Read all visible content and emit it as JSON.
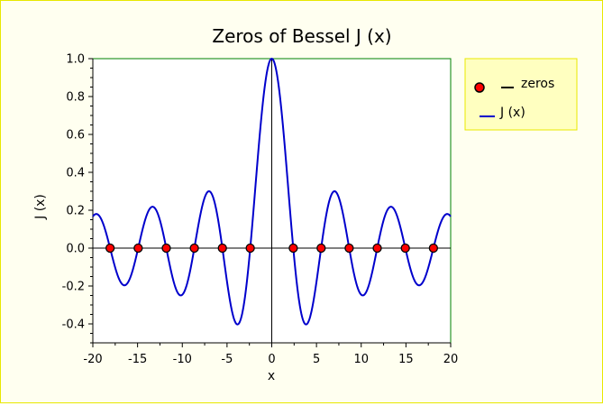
{
  "chart_data": {
    "type": "line",
    "title": "Zeros of Bessel J   (x)",
    "xlabel": "x",
    "ylabel": "J  (x)",
    "xlim": [
      -20,
      20
    ],
    "ylim": [
      -0.5,
      1.0
    ],
    "x_ticks": [
      -20,
      -15,
      -10,
      -5,
      0,
      5,
      10,
      15,
      20
    ],
    "x_tick_labels": [
      "-20",
      "-15",
      "-10",
      "-5",
      "0",
      "5",
      "10",
      "15",
      "20"
    ],
    "y_ticks": [
      -0.4,
      -0.2,
      0.0,
      0.2,
      0.4,
      0.6,
      0.8,
      1.0
    ],
    "y_tick_labels": [
      "-0.4",
      "-0.2",
      "0.0",
      "0.2",
      "0.4",
      "0.6",
      "0.8",
      "1.0"
    ],
    "grid": false,
    "legend_position": "right",
    "series": [
      {
        "name": "J   (x)",
        "kind": "line",
        "color": "#0000cc",
        "function": "bessel_j0"
      },
      {
        "name": "zeros",
        "kind": "scatter",
        "marker_fill": "#ff0000",
        "x": [
          -18.0711,
          -14.9309,
          -11.7915,
          -8.6537,
          -5.5201,
          -2.4048,
          2.4048,
          5.5201,
          8.6537,
          11.7915,
          14.9309,
          18.0711
        ],
        "y": [
          0,
          0,
          0,
          0,
          0,
          0,
          0,
          0,
          0,
          0,
          0,
          0
        ]
      }
    ],
    "legend": [
      {
        "label": "zeros"
      },
      {
        "label": "J   (x)"
      }
    ],
    "colors": {
      "background": "#fffff0",
      "plot_border": "#008000",
      "legend_bg": "#ffffc0",
      "legend_border": "#e8e800",
      "line": "#0000cc",
      "marker": "#ff0000"
    }
  }
}
